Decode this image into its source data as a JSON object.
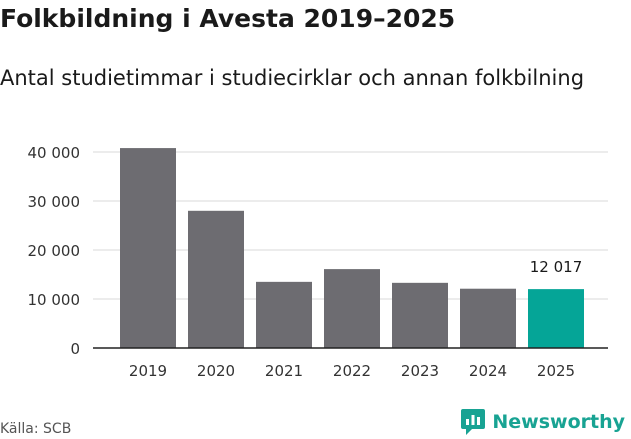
{
  "header": {
    "title": "Folkbildning i Avesta 2019–2025",
    "subtitle": "Antal studietimmar i studiecirklar och annan folkbilning"
  },
  "footer": {
    "source": "Källa: SCB",
    "brand": "Newsworthy",
    "brand_icon": "newsworthy-logo-icon"
  },
  "colors": {
    "bar": "#6d6c71",
    "highlight": "#05a597",
    "grid": "#d9d9d9",
    "axis": "#222222",
    "brand": "#18a393"
  },
  "chart_data": {
    "type": "bar",
    "categories": [
      "2019",
      "2020",
      "2021",
      "2022",
      "2023",
      "2024",
      "2025"
    ],
    "values": [
      40800,
      28000,
      13500,
      16100,
      13300,
      12100,
      12017
    ],
    "highlight_index": 6,
    "highlight_label": "12 017",
    "y_ticks": [
      0,
      10000,
      20000,
      30000,
      40000
    ],
    "y_tick_labels": [
      "0",
      "10 000",
      "20 000",
      "30 000",
      "40 000"
    ],
    "ylim": [
      0,
      40000
    ],
    "grid": true,
    "xlabel": "",
    "ylabel": ""
  }
}
